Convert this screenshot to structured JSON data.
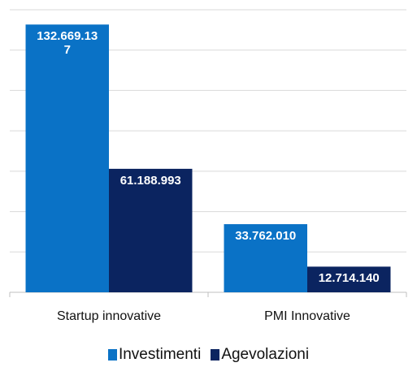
{
  "chart_data": {
    "type": "bar",
    "categories": [
      "Startup innovative",
      "PMI Innovative"
    ],
    "series": [
      {
        "name": "Investimenti",
        "color": "#0a72c6",
        "values": [
          132669137,
          33762010
        ],
        "value_labels": [
          "132.669.137",
          "33.762.010"
        ]
      },
      {
        "name": "Agevolazioni",
        "color": "#0b2460",
        "values": [
          61188993,
          12714140
        ],
        "value_labels": [
          "61.188.993",
          "12.714.140"
        ]
      }
    ],
    "ylim": [
      0,
      140000000
    ],
    "yticks": [
      0,
      20000000,
      40000000,
      60000000,
      80000000,
      100000000,
      120000000,
      140000000
    ],
    "grid": true,
    "legend": "bottom"
  }
}
